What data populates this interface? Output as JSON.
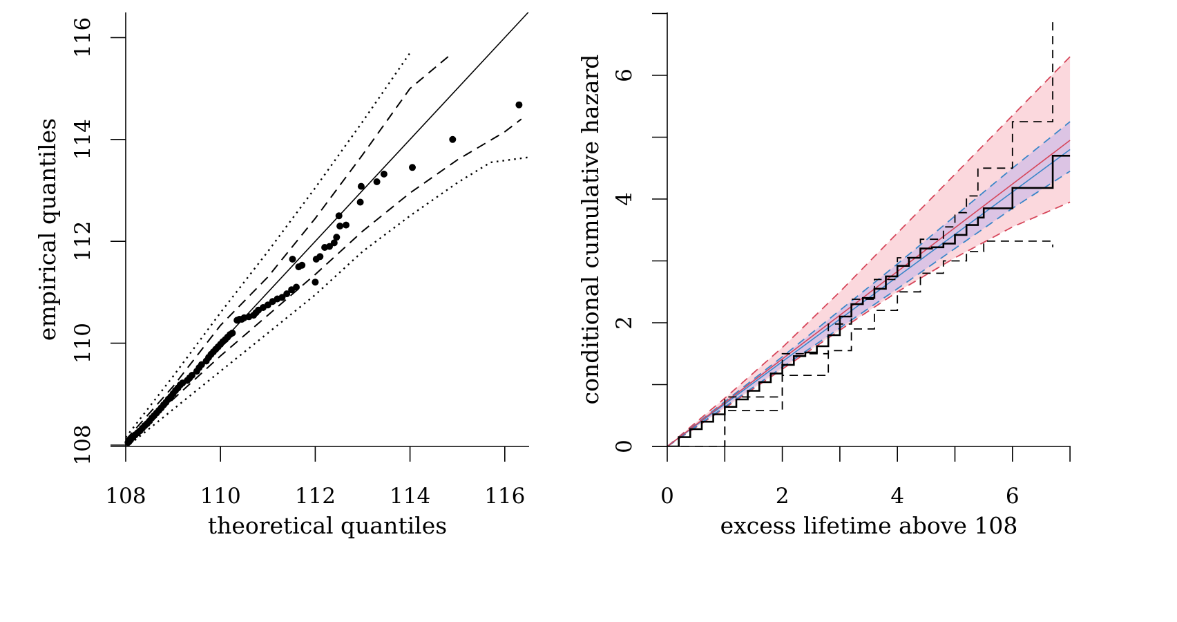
{
  "chart_data": [
    {
      "type": "scatter",
      "xlabel": "theoretical quantiles",
      "ylabel": "empirical quantiles",
      "xlim": [
        108,
        116.5
      ],
      "ylim": [
        107.9,
        116.5
      ],
      "xticks": [
        "108",
        "110",
        "112",
        "114",
        "116"
      ],
      "yticks": [
        "108",
        "110",
        "112",
        "114",
        "116"
      ],
      "grid": false,
      "points": [
        [
          108.05,
          108.05
        ],
        [
          108.1,
          108.1
        ],
        [
          108.15,
          108.15
        ],
        [
          108.2,
          108.2
        ],
        [
          108.25,
          108.24
        ],
        [
          108.3,
          108.28
        ],
        [
          108.35,
          108.33
        ],
        [
          108.4,
          108.38
        ],
        [
          108.45,
          108.42
        ],
        [
          108.5,
          108.47
        ],
        [
          108.55,
          108.53
        ],
        [
          108.6,
          108.58
        ],
        [
          108.65,
          108.63
        ],
        [
          108.7,
          108.68
        ],
        [
          108.75,
          108.73
        ],
        [
          108.8,
          108.79
        ],
        [
          108.85,
          108.84
        ],
        [
          108.9,
          108.9
        ],
        [
          108.95,
          108.95
        ],
        [
          109.0,
          109.01
        ],
        [
          109.05,
          109.07
        ],
        [
          109.1,
          109.12
        ],
        [
          109.15,
          109.18
        ],
        [
          109.2,
          109.22
        ],
        [
          109.3,
          109.27
        ],
        [
          109.35,
          109.32
        ],
        [
          109.4,
          109.37
        ],
        [
          109.5,
          109.45
        ],
        [
          109.55,
          109.52
        ],
        [
          109.6,
          109.58
        ],
        [
          109.7,
          109.65
        ],
        [
          109.75,
          109.72
        ],
        [
          109.8,
          109.78
        ],
        [
          109.85,
          109.83
        ],
        [
          109.9,
          109.88
        ],
        [
          109.95,
          109.93
        ],
        [
          110.0,
          109.98
        ],
        [
          110.05,
          110.03
        ],
        [
          110.1,
          110.07
        ],
        [
          110.15,
          110.12
        ],
        [
          110.2,
          110.17
        ],
        [
          110.25,
          110.2
        ],
        [
          110.35,
          110.45
        ],
        [
          110.4,
          110.47
        ],
        [
          110.45,
          110.47
        ],
        [
          110.5,
          110.5
        ],
        [
          110.6,
          110.52
        ],
        [
          110.7,
          110.55
        ],
        [
          110.75,
          110.6
        ],
        [
          110.8,
          110.65
        ],
        [
          110.9,
          110.7
        ],
        [
          111.0,
          110.75
        ],
        [
          111.1,
          110.82
        ],
        [
          111.2,
          110.87
        ],
        [
          111.3,
          110.9
        ],
        [
          111.4,
          110.97
        ],
        [
          111.5,
          111.05
        ],
        [
          111.52,
          111.65
        ],
        [
          111.6,
          111.1
        ],
        [
          111.65,
          111.5
        ],
        [
          111.72,
          111.53
        ],
        [
          112.0,
          111.2
        ],
        [
          112.02,
          111.65
        ],
        [
          112.1,
          111.7
        ],
        [
          112.2,
          111.88
        ],
        [
          112.3,
          111.9
        ],
        [
          112.4,
          111.97
        ],
        [
          112.45,
          112.08
        ],
        [
          112.5,
          112.5
        ],
        [
          112.52,
          112.3
        ],
        [
          112.65,
          112.32
        ],
        [
          112.95,
          112.77
        ],
        [
          112.97,
          113.08
        ],
        [
          113.3,
          113.17
        ],
        [
          113.45,
          113.32
        ],
        [
          114.05,
          113.45
        ],
        [
          114.9,
          114.0
        ],
        [
          116.3,
          114.68
        ]
      ],
      "reference_line": [
        [
          108.0,
          108.0
        ],
        [
          116.5,
          116.5
        ]
      ],
      "band_dashed_upper": [
        [
          108.0,
          108.1
        ],
        [
          109.0,
          109.15
        ],
        [
          110.0,
          110.35
        ],
        [
          111.0,
          111.3
        ],
        [
          112.0,
          112.45
        ],
        [
          113.0,
          113.7
        ],
        [
          114.0,
          115.0
        ],
        [
          114.9,
          115.7
        ]
      ],
      "band_dashed_lower": [
        [
          108.0,
          108.0
        ],
        [
          109.0,
          108.9
        ],
        [
          110.0,
          109.75
        ],
        [
          111.0,
          110.55
        ],
        [
          112.0,
          111.35
        ],
        [
          113.0,
          112.2
        ],
        [
          114.0,
          112.95
        ],
        [
          115.0,
          113.6
        ],
        [
          116.0,
          114.15
        ],
        [
          116.35,
          114.4
        ]
      ],
      "band_dotted_upper": [
        [
          108.0,
          108.15
        ],
        [
          109.0,
          109.35
        ],
        [
          110.0,
          110.6
        ],
        [
          111.0,
          111.8
        ],
        [
          112.0,
          113.05
        ],
        [
          113.0,
          114.35
        ],
        [
          114.0,
          115.7
        ]
      ],
      "band_dotted_lower": [
        [
          108.0,
          107.95
        ],
        [
          109.0,
          108.7
        ],
        [
          110.0,
          109.45
        ],
        [
          111.0,
          110.2
        ],
        [
          112.0,
          110.95
        ],
        [
          113.0,
          111.8
        ],
        [
          114.0,
          112.5
        ],
        [
          115.0,
          113.15
        ],
        [
          115.7,
          113.55
        ],
        [
          116.5,
          113.65
        ]
      ]
    },
    {
      "type": "line",
      "xlabel": "excess lifetime above 108",
      "ylabel": "conditional cumulative hazard",
      "xlim": [
        0,
        7
      ],
      "ylim": [
        0,
        7
      ],
      "xticks": [
        "0",
        "2",
        "4",
        "6"
      ],
      "yticks": [
        "0",
        "2",
        "4",
        "6"
      ],
      "grid": false,
      "colors": {
        "red": "#d6465a",
        "blue": "#3a86c8",
        "red_band_fill": "#fbd8dd",
        "overlap_fill": "#dcc4e4",
        "step": "#000000"
      },
      "red_line": [
        [
          0,
          0
        ],
        [
          7,
          4.95
        ]
      ],
      "blue_line": [
        [
          0,
          0
        ],
        [
          7,
          4.8
        ]
      ],
      "red_band_upper": [
        [
          0,
          0
        ],
        [
          1,
          0.78
        ],
        [
          2,
          1.6
        ],
        [
          3,
          2.5
        ],
        [
          4,
          3.45
        ],
        [
          5,
          4.4
        ],
        [
          6,
          5.35
        ],
        [
          7,
          6.3
        ]
      ],
      "red_band_lower": [
        [
          0,
          0
        ],
        [
          1,
          0.62
        ],
        [
          2,
          1.25
        ],
        [
          3,
          1.88
        ],
        [
          4,
          2.5
        ],
        [
          5,
          3.05
        ],
        [
          6,
          3.55
        ],
        [
          7,
          3.95
        ]
      ],
      "blue_band_upper": [
        [
          0,
          0
        ],
        [
          2,
          1.45
        ],
        [
          4,
          2.95
        ],
        [
          6,
          4.5
        ],
        [
          7,
          5.25
        ]
      ],
      "blue_band_lower": [
        [
          0,
          0
        ],
        [
          2,
          1.28
        ],
        [
          4,
          2.55
        ],
        [
          6,
          3.85
        ],
        [
          7,
          4.45
        ]
      ],
      "step_estimate": [
        [
          0,
          0
        ],
        [
          0.2,
          0.15
        ],
        [
          0.4,
          0.28
        ],
        [
          0.6,
          0.4
        ],
        [
          0.8,
          0.52
        ],
        [
          1.0,
          0.64
        ],
        [
          1.2,
          0.76
        ],
        [
          1.4,
          0.9
        ],
        [
          1.6,
          1.04
        ],
        [
          1.8,
          1.18
        ],
        [
          2.0,
          1.32
        ],
        [
          2.2,
          1.46
        ],
        [
          2.4,
          1.52
        ],
        [
          2.6,
          1.62
        ],
        [
          2.8,
          1.8
        ],
        [
          3.0,
          2.1
        ],
        [
          3.2,
          2.3
        ],
        [
          3.4,
          2.4
        ],
        [
          3.6,
          2.55
        ],
        [
          3.8,
          2.75
        ],
        [
          4.0,
          2.92
        ],
        [
          4.2,
          3.05
        ],
        [
          4.4,
          3.2
        ],
        [
          4.6,
          3.22
        ],
        [
          4.8,
          3.28
        ],
        [
          5.0,
          3.42
        ],
        [
          5.2,
          3.58
        ],
        [
          5.4,
          3.7
        ],
        [
          5.5,
          3.85
        ],
        [
          6.0,
          4.18
        ],
        [
          6.7,
          4.7
        ],
        [
          7.0,
          4.7
        ]
      ],
      "step_upper": [
        [
          0,
          0
        ],
        [
          1.0,
          0.8
        ],
        [
          2.0,
          1.5
        ],
        [
          2.8,
          1.98
        ],
        [
          3.2,
          2.38
        ],
        [
          3.6,
          2.7
        ],
        [
          4.0,
          3.05
        ],
        [
          4.4,
          3.35
        ],
        [
          4.8,
          3.55
        ],
        [
          5.0,
          3.78
        ],
        [
          5.2,
          4.05
        ],
        [
          5.4,
          4.5
        ],
        [
          5.9,
          4.5
        ],
        [
          6.0,
          5.25
        ],
        [
          6.5,
          5.25
        ],
        [
          6.7,
          6.9
        ]
      ],
      "step_lower": [
        [
          0,
          0
        ],
        [
          1.0,
          0.58
        ],
        [
          2.0,
          1.15
        ],
        [
          2.8,
          1.55
        ],
        [
          3.2,
          1.9
        ],
        [
          3.6,
          2.2
        ],
        [
          4.0,
          2.5
        ],
        [
          4.4,
          2.8
        ],
        [
          4.8,
          3.0
        ],
        [
          5.2,
          3.15
        ],
        [
          5.5,
          3.32
        ],
        [
          6.0,
          3.32
        ],
        [
          6.7,
          3.32
        ],
        [
          6.7,
          3.22
        ]
      ]
    }
  ]
}
